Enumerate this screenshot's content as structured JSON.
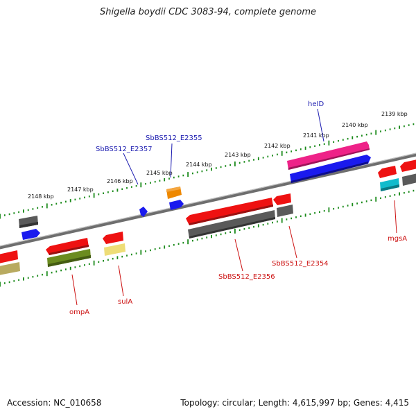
{
  "title": "Shigella boydii CDC 3083-94, complete genome",
  "footer": {
    "accession": "Accession: NC_010658",
    "topology": "Topology: circular; Length: 4,615,997 bp; Genes: 4,415"
  },
  "colors": {
    "backbone": "#7a7a7a",
    "tick_ring": "#1a8a1a",
    "label_forward": "#1b1bb0",
    "label_reverse": "#cc1111",
    "red": "#ee1111",
    "blue": "#1a1aee",
    "gray": "#555555",
    "magenta": "#ee2288",
    "orange": "#ee8800",
    "olive": "#6b8c1f",
    "khaki": "#b8aa60",
    "cyan": "#11bbcc",
    "lightyellow": "#eedd77"
  },
  "scale_labels": [
    "2148 kbp",
    "2147 kbp",
    "2146 kbp",
    "2145 kbp",
    "2144 kbp",
    "2143 kbp",
    "2142 kbp",
    "2141 kbp",
    "2140 kbp",
    "2139 kbp"
  ],
  "gene_labels": {
    "heID": "heID",
    "SbBS512_E2355": "SbBS512_E2355",
    "SbBS512_E2357": "SbBS512_E2357",
    "SbBS512_E2356": "SbBS512_E2356",
    "SbBS512_E2354": "SbBS512_E2354",
    "ompA": "ompA",
    "sulA": "sulA",
    "mgsA": "mgsA"
  }
}
